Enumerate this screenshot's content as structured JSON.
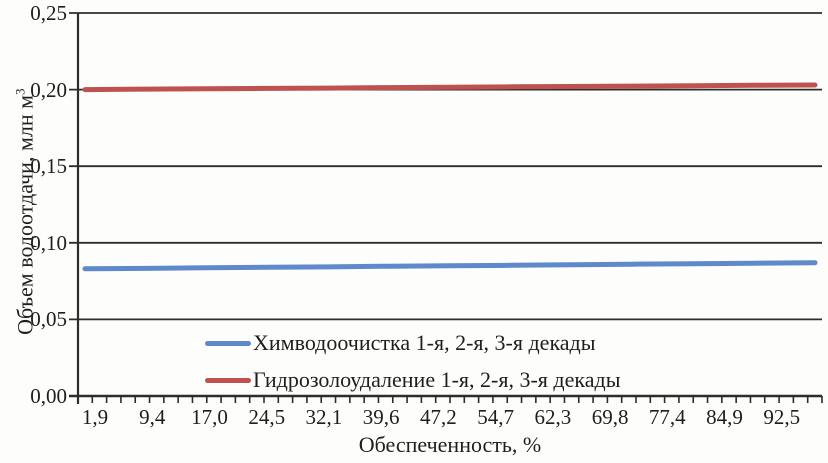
{
  "chart_data": {
    "type": "line",
    "title": "",
    "xlabel": "Обеспеченность, %",
    "ylabel_base": "Объем водоотдачи, млн м",
    "ylabel_sup": "3",
    "ylim": [
      0,
      0.25
    ],
    "grid": "horizontal",
    "background": "#fdfdfb",
    "axis_color": "#2d2d2d",
    "legend_position": "inside-bottom-left",
    "y_ticks": [
      {
        "label": "0,00",
        "value": 0.0
      },
      {
        "label": "0,05",
        "value": 0.05
      },
      {
        "label": "0,10",
        "value": 0.1
      },
      {
        "label": "0,15",
        "value": 0.15
      },
      {
        "label": "0,20",
        "value": 0.2
      },
      {
        "label": "0,25",
        "value": 0.25
      }
    ],
    "x_tick_labels": [
      "1,9",
      "9,4",
      "17,0",
      "24,5",
      "32,1",
      "39,6",
      "47,2",
      "54,7",
      "62,3",
      "69,8",
      "77,4",
      "84,9",
      "92,5"
    ],
    "x_tick_values": [
      1.9,
      9.4,
      17.0,
      24.5,
      32.1,
      39.6,
      47.2,
      54.7,
      62.3,
      69.8,
      77.4,
      84.9,
      92.5
    ],
    "x_minor_tick_count": 52,
    "series": [
      {
        "name": "Химводоочистка 1-я, 2-я, 3-я декады",
        "color": "#5e89cb",
        "values": [
          0.083,
          0.0833,
          0.0837,
          0.084,
          0.0843,
          0.0847,
          0.085,
          0.0853,
          0.0857,
          0.086,
          0.0863,
          0.0867,
          0.087
        ]
      },
      {
        "name": "Гидрозолоудаление 1-я, 2-я, 3-я декады",
        "color": "#bf5150",
        "values": [
          0.2,
          0.2003,
          0.2005,
          0.2008,
          0.201,
          0.2013,
          0.2015,
          0.2018,
          0.202,
          0.2023,
          0.2025,
          0.2028,
          0.203
        ]
      }
    ]
  }
}
